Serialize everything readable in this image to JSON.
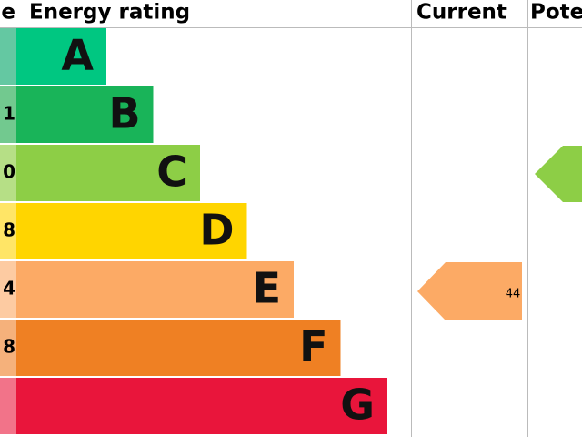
{
  "header": {
    "score": "e",
    "rating": "Energy rating",
    "current": "Current",
    "potential": "Pote"
  },
  "bands": [
    {
      "letter": "A",
      "score": null,
      "color": "#00c781",
      "score_color": "#64c8a2"
    },
    {
      "letter": "B",
      "score": "1",
      "color": "#19b459",
      "score_color": "#72c98f"
    },
    {
      "letter": "C",
      "score": "0",
      "color": "#8dce46",
      "score_color": "#b6df86"
    },
    {
      "letter": "D",
      "score": "8",
      "color": "#ffd500",
      "score_color": "#ffe566"
    },
    {
      "letter": "E",
      "score": "4",
      "color": "#fcaa65",
      "score_color": "#fdcba2"
    },
    {
      "letter": "F",
      "score": "8",
      "color": "#ef8023",
      "score_color": "#f5b17b"
    },
    {
      "letter": "G",
      "score": null,
      "color": "#e9153b",
      "score_color": "#f27389"
    }
  ],
  "current": {
    "value": "44"
  }
}
